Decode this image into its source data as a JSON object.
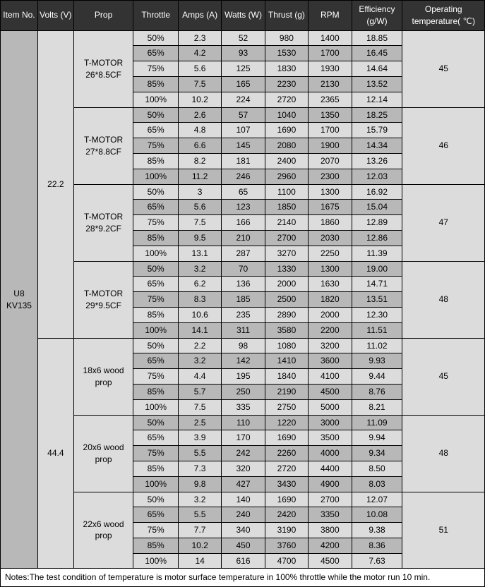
{
  "table": {
    "headers": [
      "Item No.",
      "Volts (V)",
      "Prop",
      "Throttle",
      "Amps (A)",
      "Watts (W)",
      "Thrust (g)",
      "RPM",
      "Efficiency (g/W)",
      "Operating temperature( ℃)"
    ],
    "item_no": "U8 KV135",
    "volt_groups": [
      {
        "volts": "22.2",
        "props": [
          {
            "prop": "T-MOTOR 26*8.5CF",
            "temp": "45",
            "rows": [
              {
                "thr": "50%",
                "a": "2.3",
                "w": "52",
                "t": "980",
                "rpm": "1400",
                "e": "18.85"
              },
              {
                "thr": "65%",
                "a": "4.2",
                "w": "93",
                "t": "1530",
                "rpm": "1700",
                "e": "16.45"
              },
              {
                "thr": "75%",
                "a": "5.6",
                "w": "125",
                "t": "1830",
                "rpm": "1930",
                "e": "14.64"
              },
              {
                "thr": "85%",
                "a": "7.5",
                "w": "165",
                "t": "2230",
                "rpm": "2130",
                "e": "13.52"
              },
              {
                "thr": "100%",
                "a": "10.2",
                "w": "224",
                "t": "2720",
                "rpm": "2365",
                "e": "12.14"
              }
            ]
          },
          {
            "prop": "T-MOTOR 27*8.8CF",
            "temp": "46",
            "rows": [
              {
                "thr": "50%",
                "a": "2.6",
                "w": "57",
                "t": "1040",
                "rpm": "1350",
                "e": "18.25"
              },
              {
                "thr": "65%",
                "a": "4.8",
                "w": "107",
                "t": "1690",
                "rpm": "1700",
                "e": "15.79"
              },
              {
                "thr": "75%",
                "a": "6.6",
                "w": "145",
                "t": "2080",
                "rpm": "1900",
                "e": "14.34"
              },
              {
                "thr": "85%",
                "a": "8.2",
                "w": "181",
                "t": "2400",
                "rpm": "2070",
                "e": "13.26"
              },
              {
                "thr": "100%",
                "a": "11.2",
                "w": "246",
                "t": "2960",
                "rpm": "2300",
                "e": "12.03"
              }
            ]
          },
          {
            "prop": "T-MOTOR 28*9.2CF",
            "temp": "47",
            "rows": [
              {
                "thr": "50%",
                "a": "3",
                "w": "65",
                "t": "1100",
                "rpm": "1300",
                "e": "16.92"
              },
              {
                "thr": "65%",
                "a": "5.6",
                "w": "123",
                "t": "1850",
                "rpm": "1675",
                "e": "15.04"
              },
              {
                "thr": "75%",
                "a": "7.5",
                "w": "166",
                "t": "2140",
                "rpm": "1860",
                "e": "12.89"
              },
              {
                "thr": "85%",
                "a": "9.5",
                "w": "210",
                "t": "2700",
                "rpm": "2030",
                "e": "12.86"
              },
              {
                "thr": "100%",
                "a": "13.1",
                "w": "287",
                "t": "3270",
                "rpm": "2250",
                "e": "11.39"
              }
            ]
          },
          {
            "prop": "T-MOTOR 29*9.5CF",
            "temp": "48",
            "rows": [
              {
                "thr": "50%",
                "a": "3.2",
                "w": "70",
                "t": "1330",
                "rpm": "1300",
                "e": "19.00"
              },
              {
                "thr": "65%",
                "a": "6.2",
                "w": "136",
                "t": "2000",
                "rpm": "1630",
                "e": "14.71"
              },
              {
                "thr": "75%",
                "a": "8.3",
                "w": "185",
                "t": "2500",
                "rpm": "1820",
                "e": "13.51"
              },
              {
                "thr": "85%",
                "a": "10.6",
                "w": "235",
                "t": "2890",
                "rpm": "2000",
                "e": "12.30"
              },
              {
                "thr": "100%",
                "a": "14.1",
                "w": "311",
                "t": "3580",
                "rpm": "2200",
                "e": "11.51"
              }
            ]
          }
        ]
      },
      {
        "volts": "44.4",
        "props": [
          {
            "prop": "18x6 wood prop",
            "temp": "45",
            "rows": [
              {
                "thr": "50%",
                "a": "2.2",
                "w": "98",
                "t": "1080",
                "rpm": "3200",
                "e": "11.02"
              },
              {
                "thr": "65%",
                "a": "3.2",
                "w": "142",
                "t": "1410",
                "rpm": "3600",
                "e": "9.93"
              },
              {
                "thr": "75%",
                "a": "4.4",
                "w": "195",
                "t": "1840",
                "rpm": "4100",
                "e": "9.44"
              },
              {
                "thr": "85%",
                "a": "5.7",
                "w": "250",
                "t": "2190",
                "rpm": "4500",
                "e": "8.76"
              },
              {
                "thr": "100%",
                "a": "7.5",
                "w": "335",
                "t": "2750",
                "rpm": "5000",
                "e": "8.21"
              }
            ]
          },
          {
            "prop": "20x6 wood prop",
            "temp": "48",
            "rows": [
              {
                "thr": "50%",
                "a": "2.5",
                "w": "110",
                "t": "1220",
                "rpm": "3000",
                "e": "11.09"
              },
              {
                "thr": "65%",
                "a": "3.9",
                "w": "170",
                "t": "1690",
                "rpm": "3500",
                "e": "9.94"
              },
              {
                "thr": "75%",
                "a": "5.5",
                "w": "242",
                "t": "2260",
                "rpm": "4000",
                "e": "9.34"
              },
              {
                "thr": "85%",
                "a": "7.3",
                "w": "320",
                "t": "2720",
                "rpm": "4400",
                "e": "8.50"
              },
              {
                "thr": "100%",
                "a": "9.8",
                "w": "427",
                "t": "3430",
                "rpm": "4900",
                "e": "8.03"
              }
            ]
          },
          {
            "prop": "22x6 wood prop",
            "temp": "51",
            "rows": [
              {
                "thr": "50%",
                "a": "3.2",
                "w": "140",
                "t": "1690",
                "rpm": "2700",
                "e": "12.07"
              },
              {
                "thr": "65%",
                "a": "5.5",
                "w": "240",
                "t": "2420",
                "rpm": "3350",
                "e": "10.08"
              },
              {
                "thr": "75%",
                "a": "7.7",
                "w": "340",
                "t": "3190",
                "rpm": "3800",
                "e": "9.38"
              },
              {
                "thr": "85%",
                "a": "10.2",
                "w": "450",
                "t": "3760",
                "rpm": "4200",
                "e": "8.36"
              },
              {
                "thr": "100%",
                "a": "14",
                "w": "616",
                "t": "4700",
                "rpm": "4500",
                "e": "7.63"
              }
            ]
          }
        ]
      }
    ],
    "notes": "Notes:The test condition of temperature is motor surface temperature in 100% throttle while the motor run 10 min.",
    "styling": {
      "header_bg": "#333333",
      "header_fg": "#ffffff",
      "row_bg_norm": "#dcdcdc",
      "row_bg_alt": "#b8b8b8",
      "border_color": "#000000",
      "font_family": "Arial",
      "font_size_pt": 9
    }
  }
}
